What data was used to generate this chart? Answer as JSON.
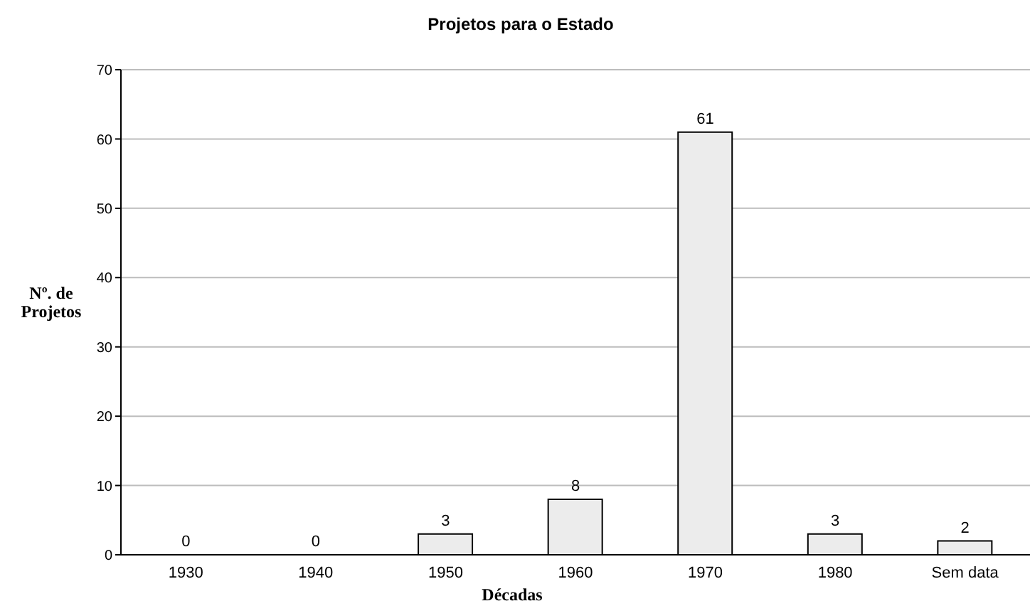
{
  "chart_data": {
    "type": "bar",
    "title": "Projetos para o Estado",
    "xlabel": "Décadas",
    "ylabel": "Nº. de\nProjetos",
    "categories": [
      "1930",
      "1940",
      "1950",
      "1960",
      "1970",
      "1980",
      "Sem data"
    ],
    "values": [
      0,
      0,
      3,
      8,
      61,
      3,
      2
    ],
    "color": "#ececec",
    "ylim": [
      0,
      70
    ],
    "yticks": [
      0,
      10,
      20,
      30,
      40,
      50,
      60,
      70
    ],
    "grid": "y",
    "data_labels": true
  }
}
